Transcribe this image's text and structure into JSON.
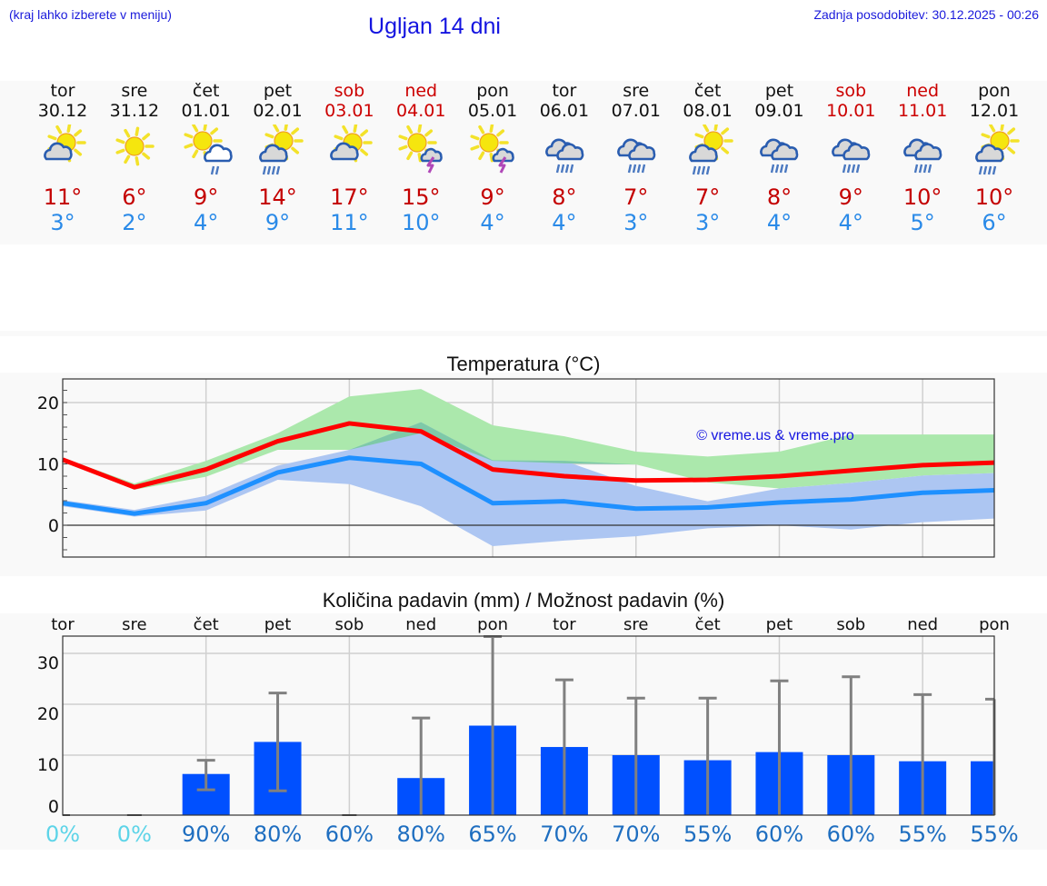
{
  "header": {
    "location_hint": "(kraj lahko izberete v meniju)",
    "title": "Ugljan 14 dni",
    "last_update": "Zadnja posodobitev: 30.12.2025 - 00:26"
  },
  "colors": {
    "link_blue": "#1a1adb",
    "weekend_red": "#cc0000",
    "tmax_red": "#c40000",
    "tmin_blue": "#2a8ae8",
    "line_max": "#ff0000",
    "line_min": "#1e90ff",
    "band_max": "#abe8ac",
    "band_min": "#adc6f2",
    "band_overlap": "#7ec9a8",
    "bar_blue": "#0050ff",
    "errbar_gray": "#808080",
    "pct_zero": "#5dd4e8",
    "pct_blue": "#1e6ec0"
  },
  "forecast": {
    "days": [
      {
        "name": "tor",
        "date": "30.12",
        "weekend": false,
        "icon": "partly-cloudy-icon",
        "tmax": "11°",
        "tmin": "3°"
      },
      {
        "name": "sre",
        "date": "31.12",
        "weekend": false,
        "icon": "sunny-icon",
        "tmax": "6°",
        "tmin": "2°"
      },
      {
        "name": "čet",
        "date": "01.01",
        "weekend": false,
        "icon": "sun-cloud-light-rain-icon",
        "tmax": "9°",
        "tmin": "4°"
      },
      {
        "name": "pet",
        "date": "02.01",
        "weekend": false,
        "icon": "sun-cloud-rain-icon",
        "tmax": "14°",
        "tmin": "9°"
      },
      {
        "name": "sob",
        "date": "03.01",
        "weekend": true,
        "icon": "partly-cloudy-icon",
        "tmax": "17°",
        "tmin": "11°"
      },
      {
        "name": "ned",
        "date": "04.01",
        "weekend": true,
        "icon": "sun-thunderstorm-icon",
        "tmax": "15°",
        "tmin": "10°"
      },
      {
        "name": "pon",
        "date": "05.01",
        "weekend": false,
        "icon": "sun-thunderstorm-icon",
        "tmax": "9°",
        "tmin": "4°"
      },
      {
        "name": "tor",
        "date": "06.01",
        "weekend": false,
        "icon": "cloudy-rain-icon",
        "tmax": "8°",
        "tmin": "4°"
      },
      {
        "name": "sre",
        "date": "07.01",
        "weekend": false,
        "icon": "cloudy-rain-icon",
        "tmax": "7°",
        "tmin": "3°"
      },
      {
        "name": "čet",
        "date": "08.01",
        "weekend": false,
        "icon": "sun-cloud-rain-icon",
        "tmax": "7°",
        "tmin": "3°"
      },
      {
        "name": "pet",
        "date": "09.01",
        "weekend": false,
        "icon": "cloudy-rain-icon",
        "tmax": "8°",
        "tmin": "4°"
      },
      {
        "name": "sob",
        "date": "10.01",
        "weekend": true,
        "icon": "cloudy-rain-icon",
        "tmax": "9°",
        "tmin": "4°"
      },
      {
        "name": "ned",
        "date": "11.01",
        "weekend": true,
        "icon": "cloudy-rain-icon",
        "tmax": "10°",
        "tmin": "5°"
      },
      {
        "name": "pon",
        "date": "12.01",
        "weekend": false,
        "icon": "sun-cloud-rain-icon",
        "tmax": "10°",
        "tmin": "6°"
      }
    ]
  },
  "chart_data": [
    {
      "type": "line",
      "title": "Temperatura (°C)",
      "xlabel": "",
      "ylabel": "",
      "ylim": [
        -5,
        24
      ],
      "yticks": [
        0,
        10,
        20
      ],
      "grid": true,
      "watermark": "© vreme.us & vreme.pro",
      "categories": [
        "30.12",
        "31.12",
        "01.01",
        "02.01",
        "03.01",
        "04.01",
        "05.01",
        "06.01",
        "07.01",
        "08.01",
        "09.01",
        "10.01",
        "11.01",
        "12.01"
      ],
      "series": [
        {
          "name": "Max temperature",
          "color": "#ff0000",
          "values": [
            10.7,
            6.2,
            9.1,
            13.7,
            16.6,
            15.3,
            9.1,
            8.0,
            7.3,
            7.4,
            8.0,
            8.9,
            9.8,
            10.2
          ]
        },
        {
          "name": "Max range low",
          "values": [
            10.4,
            5.8,
            7.9,
            12.3,
            12.3,
            15.0,
            10.5,
            10.1,
            9.9,
            7.0,
            null,
            null,
            null,
            null
          ]
        },
        {
          "name": "Max range high",
          "values": [
            11.0,
            6.8,
            10.5,
            15.0,
            21.0,
            22.2,
            16.3,
            14.5,
            12.0,
            11.2,
            12.0,
            14.8,
            14.8,
            14.8
          ]
        },
        {
          "name": "Min temperature",
          "color": "#1e90ff",
          "values": [
            3.6,
            1.9,
            3.6,
            8.6,
            11.0,
            10.0,
            3.6,
            3.9,
            2.7,
            2.9,
            3.7,
            4.2,
            5.3,
            5.7
          ]
        },
        {
          "name": "Min range low",
          "values": [
            3.1,
            1.4,
            2.4,
            7.4,
            6.7,
            3.1,
            -3.4,
            -2.5,
            -1.8,
            -0.5,
            0.0,
            -0.7,
            0.5,
            1.1
          ]
        },
        {
          "name": "Min range high",
          "values": [
            4.1,
            2.5,
            4.8,
            9.7,
            12.3,
            16.8,
            10.6,
            10.5,
            6.4,
            3.9,
            6.0,
            6.9,
            8.1,
            8.5
          ]
        }
      ]
    },
    {
      "type": "bar",
      "title": "Količina padavin (mm) / Možnost padavin (%)",
      "xlabel": "",
      "ylabel": "",
      "ylim": [
        -2,
        35
      ],
      "yticks": [
        0,
        10,
        20,
        30
      ],
      "grid": true,
      "categories": [
        "tor",
        "sre",
        "čet",
        "pet",
        "sob",
        "ned",
        "pon",
        "tor",
        "sre",
        "čet",
        "pet",
        "sob",
        "ned",
        "pon"
      ],
      "series": [
        {
          "name": "Količina padavin (mm)",
          "color": "#0050ff",
          "values": [
            0,
            0,
            6.3,
            12.6,
            0,
            5.5,
            15.8,
            11.6,
            10.0,
            9.0,
            10.6,
            10.0,
            8.8,
            8.8
          ]
        },
        {
          "name": "Error low (mm)",
          "values": [
            null,
            null,
            3.2,
            3.0,
            null,
            null,
            null,
            null,
            null,
            null,
            null,
            null,
            null,
            null
          ]
        },
        {
          "name": "Error high (mm)",
          "values": [
            null,
            null,
            9.0,
            22.2,
            null,
            17.3,
            33.3,
            24.8,
            21.2,
            21.2,
            24.6,
            25.4,
            21.9,
            21.0
          ]
        },
        {
          "name": "Možnost padavin (%)",
          "values": [
            0,
            0,
            90,
            80,
            60,
            80,
            65,
            70,
            70,
            55,
            60,
            60,
            55,
            55
          ]
        }
      ],
      "pct_labels": [
        "0%",
        "0%",
        "90%",
        "80%",
        "60%",
        "80%",
        "65%",
        "70%",
        "70%",
        "55%",
        "60%",
        "60%",
        "55%",
        "55%"
      ]
    }
  ],
  "temp_chart": {
    "title": "Temperatura (°C)",
    "watermark": "© vreme.us & vreme.pro",
    "ytick_labels": [
      "20",
      "10",
      "0"
    ]
  },
  "precip_chart": {
    "title": "Količina padavin (mm) / Možnost padavin (%)",
    "ytick_labels": [
      "30",
      "20",
      "10",
      "0"
    ],
    "day_labels": [
      "tor",
      "sre",
      "čet",
      "pet",
      "sob",
      "ned",
      "pon",
      "tor",
      "sre",
      "čet",
      "pet",
      "sob",
      "ned",
      "pon"
    ]
  }
}
